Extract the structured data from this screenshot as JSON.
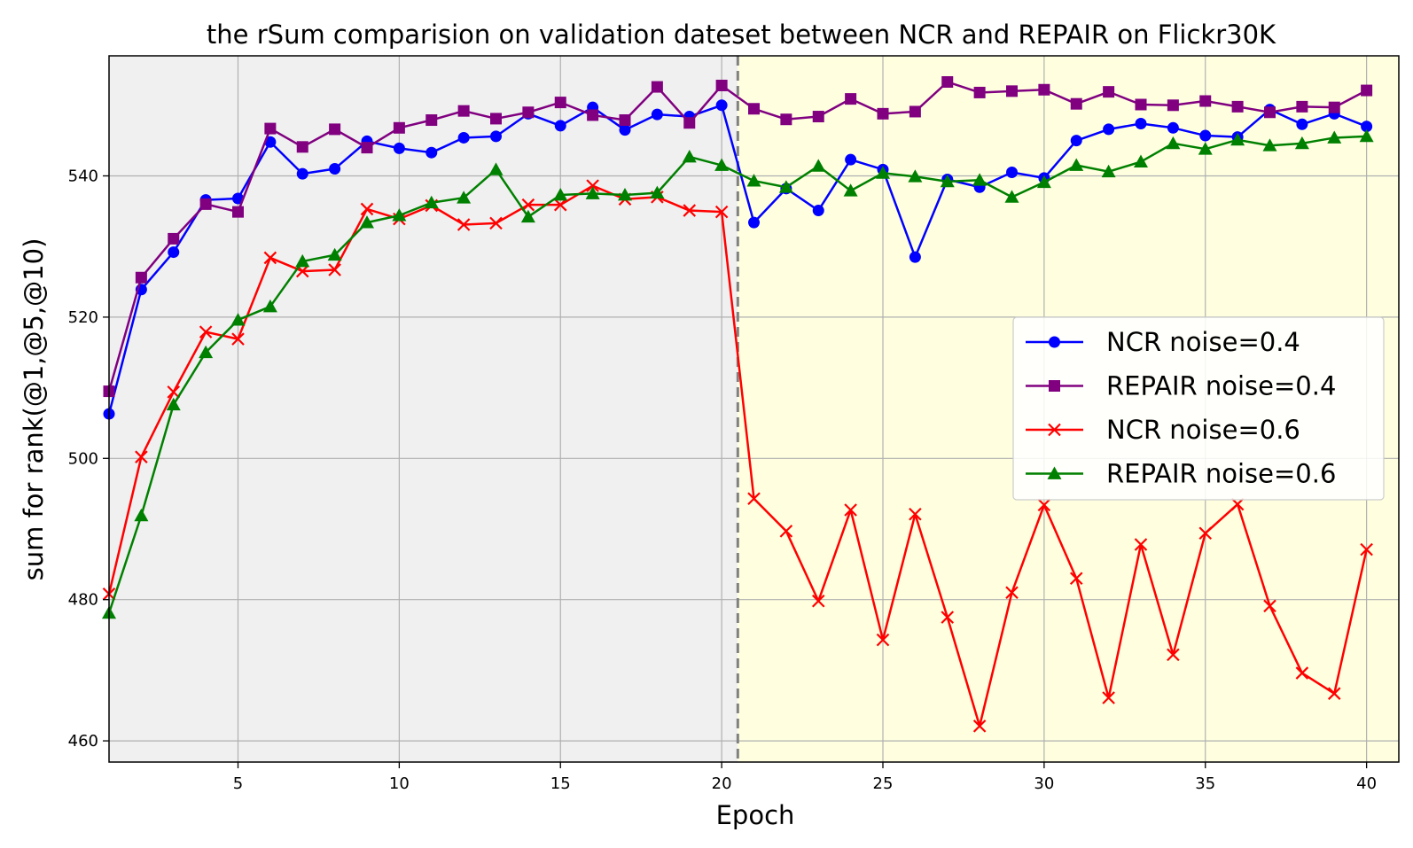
{
  "chart_data": {
    "type": "line",
    "title": "the rSum comparision on validation dateset between NCR and REPAIR on Flickr30K",
    "xlabel": "Epoch",
    "ylabel": "sum for rank(@1,@5,@10)",
    "xlim": [
      1,
      41
    ],
    "ylim": [
      457,
      557
    ],
    "xticks": [
      5,
      10,
      15,
      20,
      25,
      30,
      35,
      40
    ],
    "yticks": [
      460,
      480,
      500,
      520,
      540
    ],
    "grid": true,
    "legend_position": "center-right",
    "regions": [
      {
        "name": "warmup-region",
        "x_range": [
          1,
          20.5
        ],
        "color": "#f0f0f0"
      },
      {
        "name": "noise-region",
        "x_range": [
          20.5,
          41
        ],
        "color": "#ffffe0"
      }
    ],
    "vline": {
      "x": 20.5,
      "color": "#808080",
      "style": "dashed"
    },
    "x": [
      1,
      2,
      3,
      4,
      5,
      6,
      7,
      8,
      9,
      10,
      11,
      12,
      13,
      14,
      15,
      16,
      17,
      18,
      19,
      20,
      21,
      22,
      23,
      24,
      25,
      26,
      27,
      28,
      29,
      30,
      31,
      32,
      33,
      34,
      35,
      36,
      37,
      38,
      39,
      40
    ],
    "series": [
      {
        "name": "NCR noise=0.4",
        "color": "#0000ff",
        "marker": "circle",
        "values": [
          506.3,
          523.9,
          529.2,
          536.6,
          536.8,
          544.8,
          540.3,
          541.0,
          544.9,
          543.9,
          543.3,
          545.4,
          545.6,
          548.8,
          547.1,
          549.7,
          546.5,
          548.7,
          548.4,
          550.0,
          533.4,
          538.2,
          535.1,
          542.3,
          540.9,
          528.5,
          539.5,
          538.4,
          540.5,
          539.7,
          545.0,
          546.6,
          547.4,
          546.8,
          545.7,
          545.5,
          549.4,
          547.3,
          548.8,
          547.0
        ]
      },
      {
        "name": "REPAIR noise=0.4",
        "color": "#800080",
        "marker": "square",
        "values": [
          509.5,
          525.6,
          531.1,
          536.0,
          534.9,
          546.7,
          544.1,
          546.6,
          544.0,
          546.8,
          547.9,
          549.2,
          548.1,
          549.0,
          550.4,
          548.6,
          547.9,
          552.6,
          547.5,
          552.8,
          549.5,
          548.0,
          548.4,
          550.9,
          548.8,
          549.1,
          553.3,
          551.8,
          552.0,
          552.2,
          550.2,
          551.9,
          550.1,
          550.0,
          550.6,
          549.8,
          549.0,
          549.8,
          549.7,
          552.1
        ]
      },
      {
        "name": "NCR noise=0.6",
        "color": "#ff0000",
        "marker": "x",
        "values": [
          480.8,
          500.2,
          509.4,
          517.9,
          516.9,
          528.4,
          526.5,
          526.7,
          535.3,
          533.9,
          535.8,
          533.1,
          533.3,
          535.9,
          535.9,
          538.6,
          536.7,
          537.0,
          535.1,
          534.9,
          494.3,
          489.7,
          479.8,
          492.7,
          474.3,
          492.1,
          477.5,
          462.1,
          481.0,
          493.4,
          483.0,
          466.1,
          487.8,
          472.2,
          489.4,
          493.5,
          479.1,
          469.6,
          466.7,
          487.1
        ]
      },
      {
        "name": "REPAIR noise=0.6",
        "color": "#008000",
        "marker": "triangle",
        "values": [
          478.1,
          491.9,
          507.6,
          515.0,
          519.6,
          521.5,
          527.9,
          528.8,
          533.4,
          534.4,
          536.2,
          536.9,
          540.9,
          534.2,
          537.3,
          537.5,
          537.3,
          537.6,
          542.7,
          541.5,
          539.3,
          538.4,
          541.4,
          537.9,
          540.4,
          539.9,
          539.2,
          539.4,
          537.0,
          539.1,
          541.5,
          540.6,
          542.0,
          544.6,
          543.8,
          545.1,
          544.3,
          544.6,
          545.4,
          545.6
        ]
      }
    ]
  }
}
